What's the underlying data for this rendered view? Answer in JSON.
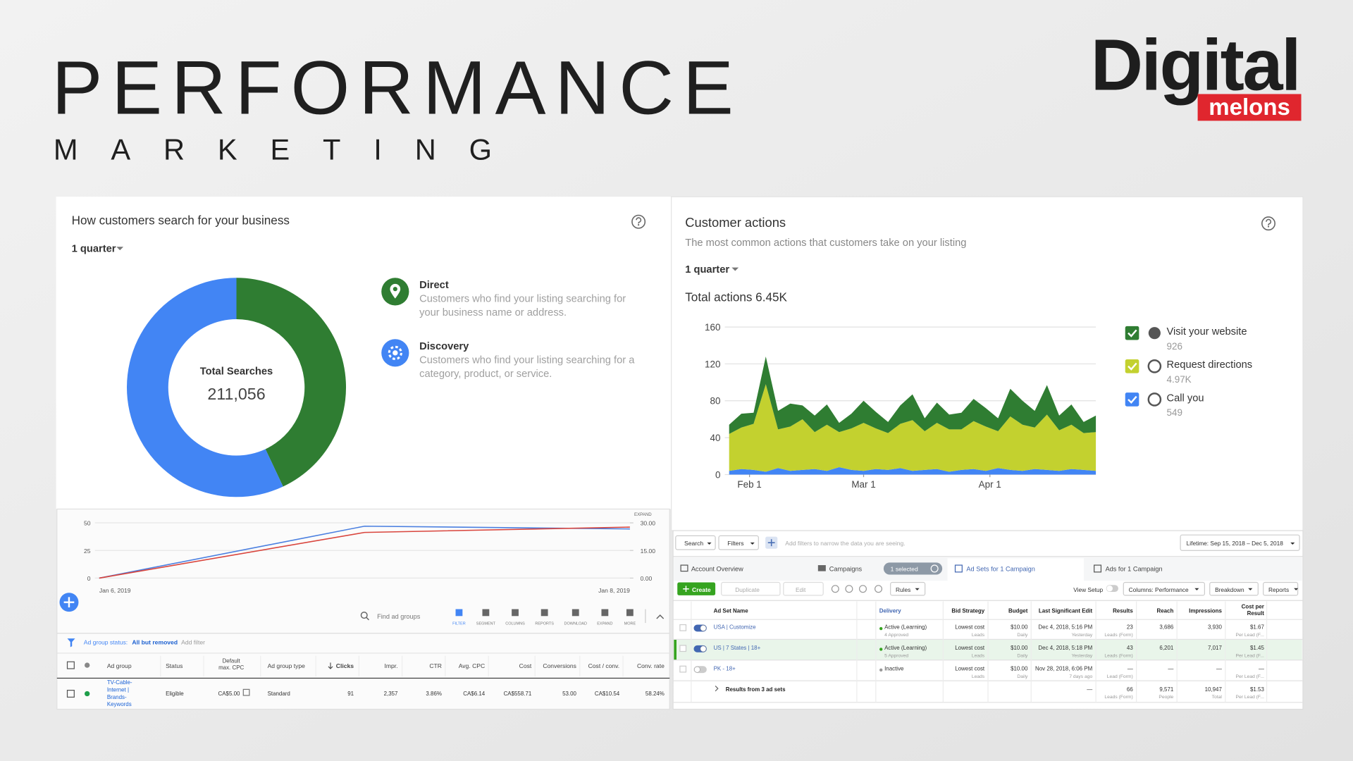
{
  "header": {
    "title": "PERFORMANCE",
    "subtitle": "MARKETING",
    "logo_top": "Digital",
    "logo_bottom": "melons"
  },
  "search_panel": {
    "title": "How customers search for your business",
    "period": "1 quarter",
    "center_label": "Total Searches",
    "center_value": "211,056",
    "chart_data": {
      "type": "donut",
      "categories": [
        "Direct",
        "Discovery"
      ],
      "values": [
        43,
        57
      ],
      "colors": [
        "#2f7d32",
        "#4285f4"
      ],
      "descriptions": [
        [
          "Customers who find your listing searching for",
          "your business name or address."
        ],
        [
          "Customers who find your listing searching for a",
          "category, product, or service."
        ]
      ]
    }
  },
  "actions_panel": {
    "title": "Customer actions",
    "subtitle": "The most common actions that customers take on your listing",
    "period": "1 quarter",
    "total": "Total actions 6.45K",
    "chart_data": {
      "type": "stacked-area",
      "x": [
        -5,
        -2,
        1,
        4,
        7,
        10,
        13,
        16,
        19,
        22,
        25,
        28,
        31,
        34,
        37,
        40,
        43,
        46,
        49,
        52,
        55,
        58,
        61,
        64,
        67,
        70,
        73,
        76,
        79,
        82,
        85
      ],
      "xlim": [
        -5,
        85
      ],
      "xticks": [
        {
          "value": 0,
          "label": "Feb 1"
        },
        {
          "value": 28,
          "label": "Mar 1"
        },
        {
          "value": 59,
          "label": "Apr 1"
        }
      ],
      "ylim": [
        0,
        160
      ],
      "yticks": [
        0,
        40,
        80,
        120,
        160
      ],
      "grid": true,
      "series": [
        {
          "name": "Visit your website",
          "total": "926",
          "color": "#2f7d32",
          "values": [
            10,
            15,
            12,
            30,
            20,
            25,
            15,
            18,
            22,
            10,
            16,
            24,
            18,
            12,
            20,
            28,
            14,
            22,
            16,
            18,
            24,
            20,
            14,
            30,
            26,
            18,
            32,
            16,
            22,
            12,
            18
          ]
        },
        {
          "name": "Request directions",
          "total": "4.97K",
          "color": "#c3d12f",
          "values": [
            40,
            45,
            50,
            95,
            42,
            48,
            55,
            40,
            50,
            38,
            45,
            52,
            44,
            40,
            48,
            55,
            42,
            50,
            46,
            44,
            52,
            48,
            40,
            58,
            50,
            45,
            60,
            44,
            48,
            40,
            42
          ]
        },
        {
          "name": "Call you",
          "total": "549",
          "color": "#4285f4",
          "values": [
            4,
            6,
            5,
            3,
            7,
            4,
            5,
            6,
            4,
            8,
            5,
            4,
            6,
            5,
            7,
            4,
            5,
            6,
            3,
            5,
            6,
            4,
            7,
            5,
            4,
            6,
            5,
            4,
            6,
            5,
            4
          ]
        }
      ]
    }
  },
  "trend_chart": {
    "expand": "EXPAND",
    "chart_data": {
      "type": "line",
      "categories": [
        "Jan 6, 2019",
        null,
        "Jan 8, 2019"
      ],
      "ylim": [
        0,
        50
      ],
      "yticks": [
        0,
        25,
        50
      ],
      "y2lim": [
        0,
        30
      ],
      "y2ticks": [
        {
          "value": 0,
          "label": "0.00"
        },
        {
          "value": 15,
          "label": "15.00"
        },
        {
          "value": 30,
          "label": "30.00"
        }
      ],
      "grid": true,
      "series": [
        {
          "color": "#4a7fe0",
          "values": [
            0,
            47,
            44.5
          ]
        },
        {
          "color": "#d9453d",
          "axis": "y2",
          "values": [
            0,
            24.8,
            27.7
          ]
        }
      ]
    }
  },
  "ad_groups": {
    "search_placeholder": "Find ad groups",
    "tools": [
      "FILTER",
      "SEGMENT",
      "COLUMNS",
      "REPORTS",
      "DOWNLOAD",
      "EXPAND",
      "MORE"
    ],
    "filter_label": "Ad group status:",
    "filter_value": "All but removed",
    "add_filter": "Add filter",
    "header": {
      "ad_group": "Ad group",
      "status": "Status",
      "max_cpc": [
        "Default",
        "max. CPC"
      ],
      "type": "Ad group type",
      "clicks": "Clicks",
      "impr": "Impr.",
      "ctr": "CTR",
      "avg_cpc": "Avg. CPC",
      "cost": "Cost",
      "conversions": "Conversions",
      "cost_conv": "Cost / conv.",
      "conv_rate": "Conv. rate"
    },
    "rows": [
      {
        "ad_group": [
          "TV-Cable-",
          "Internet |",
          "Brands-",
          "Keywords"
        ],
        "status": "Eligible",
        "max_cpc": "CA$5.00",
        "type": "Standard",
        "clicks": "91",
        "impr": "2,357",
        "ctr": "3.86%",
        "avg_cpc": "CA$6.14",
        "cost": "CA$558.71",
        "conversions": "53.00",
        "cost_conv": "CA$10.54",
        "conv_rate": "58.24%"
      }
    ]
  },
  "ad_sets": {
    "search": "Search",
    "filters": "Filters",
    "filter_hint": "Add filters to narrow the data you are seeing.",
    "lifetime": "Lifetime: Sep 15, 2018 – Dec 5, 2018",
    "tabs": {
      "overview": "Account Overview",
      "campaigns": "Campaigns",
      "selected": "1 selected",
      "ad_sets": "Ad Sets for 1 Campaign",
      "ads": "Ads for 1 Campaign"
    },
    "buttons": {
      "create": "Create",
      "duplicate": "Duplicate",
      "edit": "Edit",
      "rules": "Rules",
      "view_setup": "View Setup",
      "columns": "Columns: Performance",
      "breakdown": "Breakdown",
      "reports": "Reports"
    },
    "header": {
      "name": "Ad Set Name",
      "delivery": "Delivery",
      "bid_strategy": "Bid Strategy",
      "budget": "Budget",
      "last_edit": "Last Significant Edit",
      "results": "Results",
      "reach": "Reach",
      "impressions": "Impressions",
      "cost_per_result": [
        "Cost per",
        "Result"
      ]
    },
    "rows": [
      {
        "name": "USA | Customize",
        "delivery": [
          "Active (Learning)",
          "4 Approved"
        ],
        "bid_strategy": [
          "Lowest cost",
          "Leads"
        ],
        "budget": [
          "$10.00",
          "Daily"
        ],
        "last_edit": [
          "Dec 4, 2018, 5:16 PM",
          "Yesterday"
        ],
        "results": [
          "23",
          "Leads (Form)"
        ],
        "reach": "3,686",
        "impressions": "3,930",
        "cost_per_result": [
          "$1.67",
          "Per Lead (F..."
        ]
      },
      {
        "name": "US | 7 States | 18+",
        "delivery": [
          "Active (Learning)",
          "5 Approved"
        ],
        "bid_strategy": [
          "Lowest cost",
          "Leads"
        ],
        "budget": [
          "$10.00",
          "Daily"
        ],
        "last_edit": [
          "Dec 4, 2018, 5:18 PM",
          "Yesterday"
        ],
        "results": [
          "43",
          "Leads (Form)"
        ],
        "reach": "6,201",
        "impressions": "7,017",
        "cost_per_result": [
          "$1.45",
          "Per Lead (F..."
        ]
      },
      {
        "name": "PK - 18+",
        "delivery": "Inactive",
        "bid_strategy": [
          "Lowest cost",
          "Leads"
        ],
        "budget": [
          "$10.00",
          "Daily"
        ],
        "last_edit": [
          "Nov 28, 2018, 6:06 PM",
          "7 days ago"
        ],
        "results": [
          "—",
          "Lead (Form)"
        ],
        "reach": "—",
        "impressions": "—",
        "cost_per_result": [
          "—",
          "Per Lead (F..."
        ]
      }
    ],
    "summary": {
      "name": "Results from 3 ad sets",
      "last_edit": "—",
      "results": [
        "66",
        "Leads (Form)"
      ],
      "reach": [
        "9,571",
        "People"
      ],
      "impressions": [
        "10,947",
        "Total"
      ],
      "cost_per_result": [
        "$1.53",
        "Per Lead (F..."
      ]
    }
  }
}
